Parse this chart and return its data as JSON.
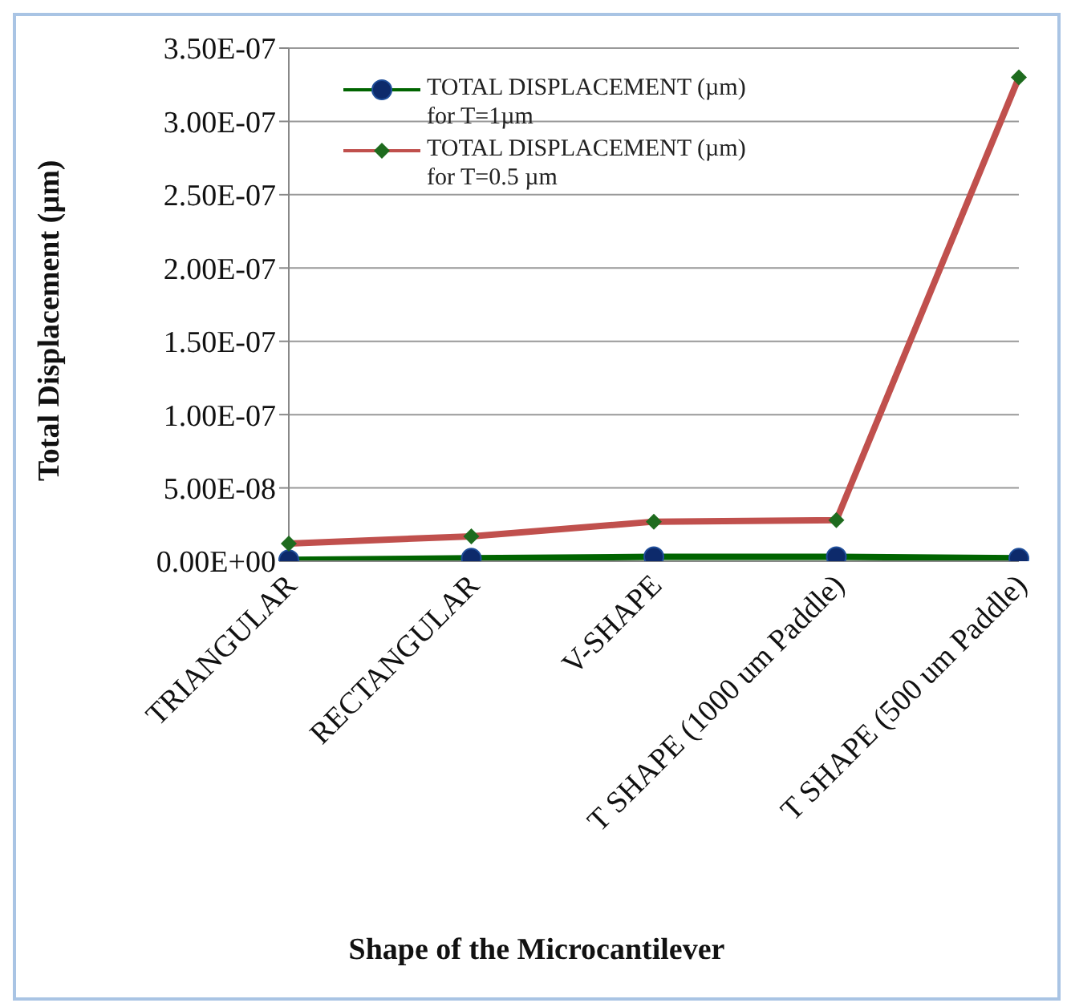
{
  "chart_data": {
    "type": "line",
    "xlabel": "Shape of the Microcantilever",
    "ylabel": "Total Displacement (µm)",
    "categories": [
      "TRIANGULAR",
      "RECTANGULAR",
      "V-SHAPE",
      "T SHAPE (1000 um Paddle)",
      "T SHAPE (500 um Paddle)"
    ],
    "series": [
      {
        "name": "TOTAL DISPLACEMENT (µm) for  T=1µm",
        "color": "#006400",
        "marker": "circle",
        "values": [
          1e-09,
          2e-09,
          3e-09,
          3e-09,
          2e-09
        ]
      },
      {
        "name": "TOTAL DISPLACEMENT (µm) for  T=0.5 µm",
        "color": "#c0504d",
        "marker": "diamond",
        "values": [
          1.2e-08,
          1.7e-08,
          2.7e-08,
          2.8e-08,
          3.3e-07
        ]
      }
    ],
    "ylim": [
      0,
      3.5e-07
    ],
    "yticks": [
      {
        "value": 0,
        "label": "0.00E+00"
      },
      {
        "value": 5e-08,
        "label": "5.00E-08"
      },
      {
        "value": 1e-07,
        "label": "1.00E-07"
      },
      {
        "value": 1.5e-07,
        "label": "1.50E-07"
      },
      {
        "value": 2e-07,
        "label": "2.00E-07"
      },
      {
        "value": 2.5e-07,
        "label": "2.50E-07"
      },
      {
        "value": 3e-07,
        "label": "3.00E-07"
      },
      {
        "value": 3.5e-07,
        "label": "3.50E-07"
      }
    ],
    "grid": "y",
    "legend": "top left"
  }
}
